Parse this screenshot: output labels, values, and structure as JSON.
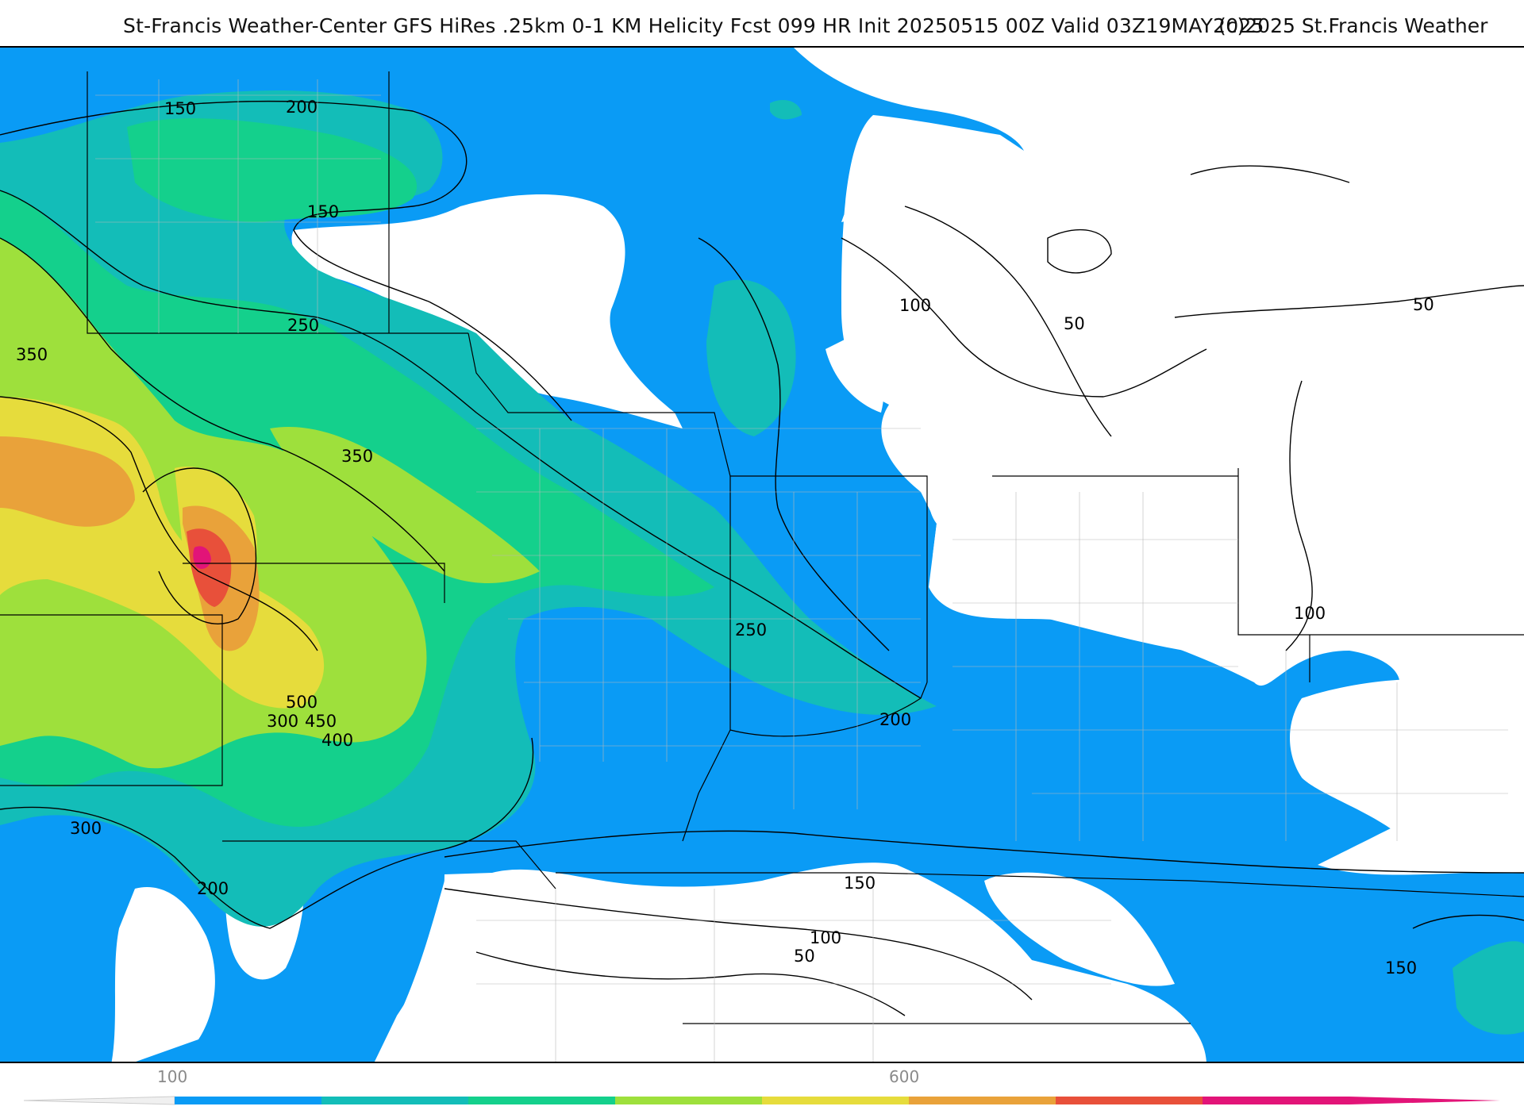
{
  "header": {
    "title": "St-Francis Weather-Center GFS HiRes .25km 0-1 KM Helicity Fcst 099 HR Init 20250515 00Z  Valid 03Z19MAY2025",
    "copyright": "(c)2025 St.Francis Weather"
  },
  "map": {
    "variable": "0-1 KM Helicity",
    "contour_labels": [
      {
        "text": "150"
      },
      {
        "text": "200"
      },
      {
        "text": "150"
      },
      {
        "text": "250"
      },
      {
        "text": "350"
      },
      {
        "text": "350"
      },
      {
        "text": "500"
      },
      {
        "text": "300"
      },
      {
        "text": "450"
      },
      {
        "text": "400"
      },
      {
        "text": "300"
      },
      {
        "text": "200"
      },
      {
        "text": "250"
      },
      {
        "text": "200"
      },
      {
        "text": "150"
      },
      {
        "text": "100"
      },
      {
        "text": "50"
      },
      {
        "text": "100"
      },
      {
        "text": "50"
      },
      {
        "text": "50"
      },
      {
        "text": "100"
      },
      {
        "text": "150"
      }
    ],
    "fill_colors": {
      "blue": "#0a9bf5",
      "teal": "#13bdb8",
      "green": "#14d08c",
      "lime": "#9ee03c",
      "yellow": "#e6dc3c",
      "orange": "#e9a23a",
      "red": "#e8503a",
      "white": "#ffffff"
    }
  },
  "legend": {
    "tick_labels": [
      {
        "text": "100"
      },
      {
        "text": "600"
      }
    ],
    "colors": [
      "#0a9bf5",
      "#13bdb8",
      "#14d08c",
      "#9ee03c",
      "#e6dc3c",
      "#e9a23a",
      "#e8503a",
      "#e21478"
    ]
  }
}
